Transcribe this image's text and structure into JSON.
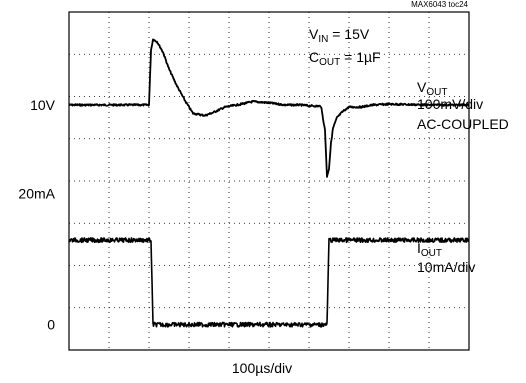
{
  "chart_data": {
    "type": "line",
    "title": "",
    "figure_id": "MAX6043 toc24",
    "xlabel": "100µs/div",
    "x_divisions": 10,
    "y_divisions": 8,
    "grid": true,
    "conditions": {
      "vin": {
        "sym": "V",
        "sub": "IN",
        "value": " = 15V"
      },
      "cout": {
        "sym": "C",
        "sub": "OUT",
        "value": " = 1µF"
      }
    },
    "y_tick_labels": [
      {
        "text": "10V",
        "div": 2.2
      },
      {
        "text": "20mA",
        "div": 4.3
      },
      {
        "text": "0",
        "div": 7.4
      }
    ],
    "channel_labels": {
      "vout": {
        "sym": "V",
        "sub": "OUT",
        "lines": [
          "100mV/div",
          "AC-COUPLED"
        ]
      },
      "iout": {
        "sym": "I",
        "sub": "OUT",
        "lines": [
          "10mA/div"
        ]
      }
    },
    "series": [
      {
        "id": "vout",
        "unit": "mV (AC-coupled, 100mV/div)",
        "x_div": [
          0,
          2.0,
          2.05,
          2.1,
          2.2,
          2.35,
          2.5,
          2.7,
          2.9,
          3.1,
          3.4,
          3.6,
          3.9,
          4.2,
          4.6,
          5.0,
          5.4,
          5.8,
          6.0,
          6.3,
          6.4,
          6.45,
          6.5,
          6.55,
          6.6,
          6.7,
          6.85,
          7.0,
          7.3,
          7.6,
          8.0,
          8.5,
          9.0,
          10
        ],
        "y": [
          0,
          0,
          130,
          155,
          150,
          125,
          85,
          45,
          10,
          -20,
          -25,
          -18,
          -5,
          0,
          8,
          5,
          0,
          0,
          -2,
          -3,
          -60,
          -170,
          -150,
          -90,
          -55,
          -30,
          -15,
          -5,
          -5,
          0,
          2,
          1,
          0,
          0
        ]
      },
      {
        "id": "iout",
        "unit": "mA (10mA/div)",
        "x_div": [
          0,
          2.05,
          2.1,
          6.45,
          6.5,
          10
        ],
        "y": [
          20,
          20,
          0,
          0,
          20,
          20
        ]
      }
    ]
  }
}
